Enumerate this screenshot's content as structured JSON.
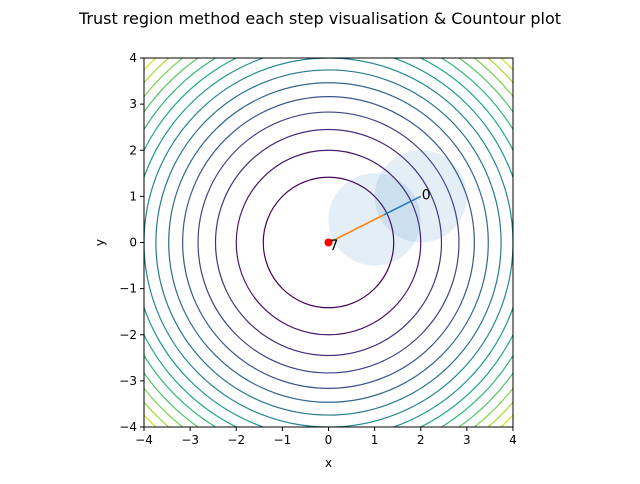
{
  "chart_data": {
    "type": "contour",
    "title": "Trust region method each step visualisation & Countour plot",
    "xlabel": "x",
    "ylabel": "y",
    "xlim": [
      -4,
      4
    ],
    "ylim": [
      -4,
      4
    ],
    "xticks": [
      -4,
      -3,
      -2,
      -1,
      0,
      1,
      2,
      3,
      4
    ],
    "yticks": [
      -4,
      -3,
      -2,
      -1,
      0,
      1,
      2,
      3,
      4
    ],
    "xtick_labels": [
      "−4",
      "−3",
      "−2",
      "−1",
      "0",
      "1",
      "2",
      "3",
      "4"
    ],
    "ytick_labels": [
      "−4",
      "−3",
      "−2",
      "−1",
      "0",
      "1",
      "2",
      "3",
      "4"
    ],
    "grid": false,
    "contour": {
      "function": "x^2 + y^2",
      "levels": [
        2,
        4,
        6,
        8,
        10,
        12,
        14,
        16,
        18,
        20,
        22,
        24,
        26,
        28,
        30
      ],
      "colors": [
        "#440154",
        "#481a6c",
        "#472f7d",
        "#414487",
        "#39568c",
        "#31688e",
        "#2a788e",
        "#23888e",
        "#1f988b",
        "#22a884",
        "#35b779",
        "#54c568",
        "#7ad151",
        "#a5db36",
        "#d2e21b"
      ]
    },
    "trust_regions": [
      {
        "center": [
          2,
          1
        ],
        "radius": 1,
        "color": "#1f77b4",
        "alpha": 0.12
      },
      {
        "center": [
          1,
          0.5
        ],
        "radius": 1,
        "color": "#1f77b4",
        "alpha": 0.12
      }
    ],
    "steps": [
      {
        "from": [
          2,
          1
        ],
        "to": [
          1.2,
          0.6
        ],
        "color": "#1f77b4"
      },
      {
        "from": [
          1.2,
          0.6
        ],
        "to": [
          0.15,
          0.07
        ],
        "color": "#ff7f0e"
      },
      {
        "from": [
          0.15,
          0.07
        ],
        "to": [
          0.1,
          0.04
        ],
        "color": "#2ca02c"
      },
      {
        "from": [
          0.1,
          0.04
        ],
        "to": [
          0.06,
          0.02
        ],
        "color": "#d62728"
      },
      {
        "from": [
          0.06,
          0.02
        ],
        "to": [
          0.03,
          0.01
        ],
        "color": "#9467bd"
      },
      {
        "from": [
          0.03,
          0.01
        ],
        "to": [
          0.0,
          0.0
        ],
        "color": "#8c564b"
      }
    ],
    "annotations": [
      {
        "text": "0",
        "x": 2.0,
        "y": 1.02
      },
      {
        "text": "7",
        "x": 0.0,
        "y": -0.08
      }
    ],
    "minimum_point": {
      "x": 0,
      "y": 0,
      "color": "#ff0000"
    }
  }
}
